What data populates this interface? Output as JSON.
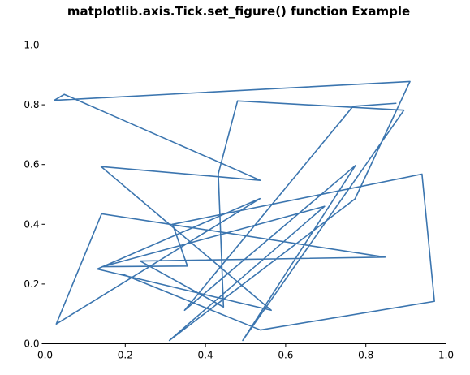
{
  "chart_data": {
    "type": "line",
    "title": "matplotlib.axis.Tick.set_figure() function Example",
    "xlabel": "",
    "ylabel": "",
    "xlim": [
      0.0,
      1.0
    ],
    "ylim": [
      0.0,
      1.0
    ],
    "grid": false,
    "x_ticks": [
      0.0,
      0.2,
      0.4,
      0.6,
      0.8,
      1.0
    ],
    "y_ticks": [
      0.0,
      0.2,
      0.4,
      0.6,
      0.8,
      1.0
    ],
    "x_tick_labels": [
      "0.0",
      "0.2",
      "0.4",
      "0.6",
      "0.8",
      "1.0"
    ],
    "y_tick_labels": [
      "0.0",
      "0.2",
      "0.4",
      "0.6",
      "0.8",
      "1.0"
    ],
    "series": [
      {
        "color": "#3b75af",
        "x": [
          0.875,
          0.768,
          0.348,
          0.774,
          0.493,
          0.895,
          0.48,
          0.432,
          0.445,
          0.237,
          0.848,
          0.141,
          0.028,
          0.536,
          0.13,
          0.564,
          0.14,
          0.537,
          0.048,
          0.023,
          0.91,
          0.773,
          0.31,
          0.697,
          0.143,
          0.355,
          0.318,
          0.94,
          0.971,
          0.537,
          0.195
        ],
        "y": [
          0.805,
          0.795,
          0.112,
          0.597,
          0.011,
          0.782,
          0.813,
          0.569,
          0.123,
          0.277,
          0.29,
          0.435,
          0.066,
          0.486,
          0.25,
          0.112,
          0.593,
          0.547,
          0.835,
          0.815,
          0.878,
          0.485,
          0.011,
          0.46,
          0.258,
          0.26,
          0.4,
          0.568,
          0.142,
          0.046,
          0.232
        ]
      }
    ]
  }
}
